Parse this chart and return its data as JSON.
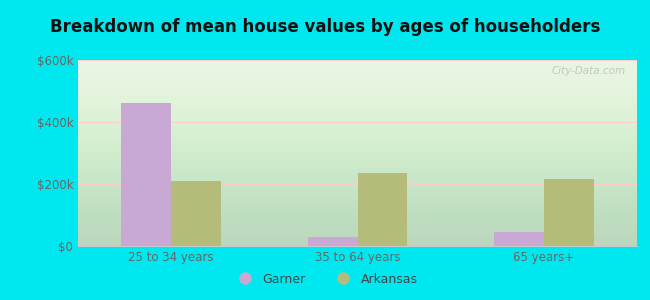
{
  "title": "Breakdown of mean house values by ages of householders",
  "categories": [
    "25 to 34 years",
    "35 to 64 years",
    "65 years+"
  ],
  "garner_values": [
    462000,
    30000,
    45000
  ],
  "arkansas_values": [
    210000,
    235000,
    215000
  ],
  "garner_color": "#c9a8d4",
  "arkansas_color": "#b5bc7a",
  "ylim": [
    0,
    600000
  ],
  "yticks": [
    0,
    200000,
    400000,
    600000
  ],
  "ytick_labels": [
    "$0",
    "$200k",
    "$400k",
    "$600k"
  ],
  "legend_garner": "Garner",
  "legend_arkansas": "Arkansas",
  "bg_color_outer": "#00e8ef",
  "title_fontsize": 12,
  "bar_width": 0.32,
  "tick_color": "#666666",
  "watermark": "City-Data.com"
}
